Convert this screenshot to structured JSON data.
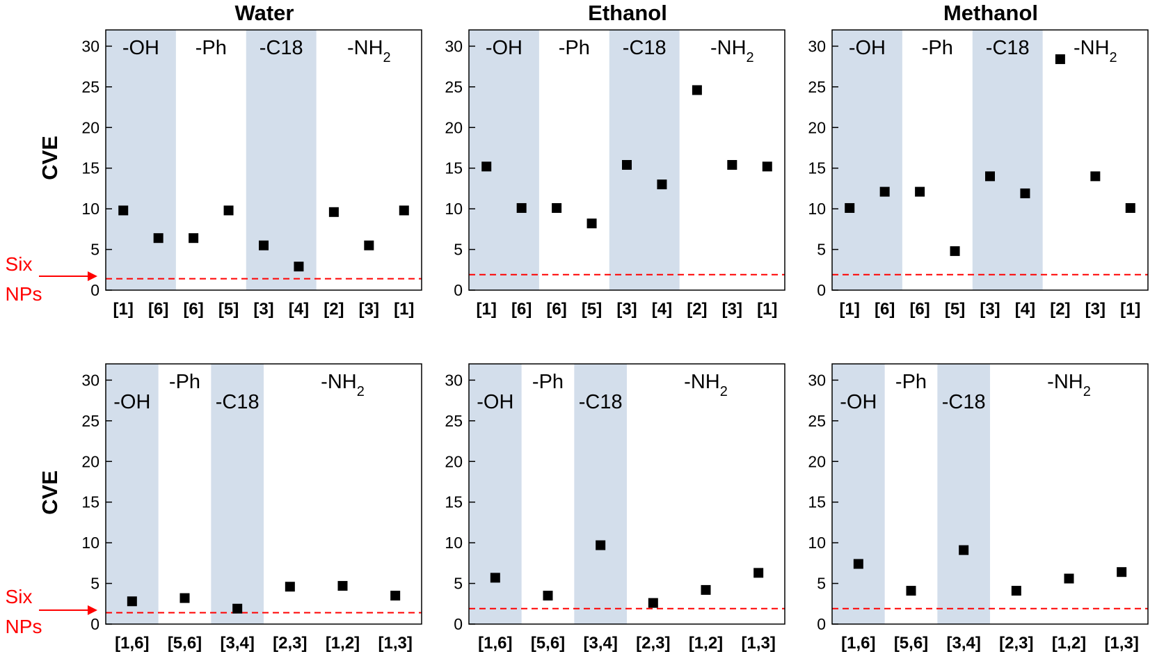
{
  "column_titles": [
    "Water",
    "Ethanol",
    "Methanol"
  ],
  "ylabel": "CVE",
  "reference_label": [
    "Six",
    "NPs"
  ],
  "colors": {
    "shade": "#d3deeb",
    "marker": "#000000",
    "reference_line": "#ff0000",
    "axis": "#000000"
  },
  "chart_data": [
    {
      "type": "scatter",
      "solvent": "Water",
      "row": "top",
      "categories": [
        "[1]",
        "[6]",
        "[6]",
        "[5]",
        "[3]",
        "[4]",
        "[2]",
        "[3]",
        "[1]"
      ],
      "values": [
        9.8,
        6.4,
        6.4,
        9.8,
        5.5,
        2.9,
        9.6,
        5.5,
        9.8
      ],
      "groups": [
        {
          "label": "-OH",
          "range": [
            0,
            1
          ],
          "shaded": true,
          "label_level": "high"
        },
        {
          "label": "-Ph",
          "range": [
            2,
            3
          ],
          "shaded": false,
          "label_level": "high"
        },
        {
          "label": "-C18",
          "range": [
            4,
            5
          ],
          "shaded": true,
          "label_level": "high"
        },
        {
          "label": "-NH",
          "sub": "2",
          "range": [
            6,
            8
          ],
          "shaded": false,
          "label_level": "high"
        }
      ],
      "reference": 1.4,
      "ylim": [
        0,
        32
      ],
      "yticks": [
        0,
        5,
        10,
        15,
        20,
        25,
        30
      ]
    },
    {
      "type": "scatter",
      "solvent": "Ethanol",
      "row": "top",
      "categories": [
        "[1]",
        "[6]",
        "[6]",
        "[5]",
        "[3]",
        "[4]",
        "[2]",
        "[3]",
        "[1]"
      ],
      "values": [
        15.2,
        10.1,
        10.1,
        8.2,
        15.4,
        13.0,
        24.6,
        15.4,
        15.2
      ],
      "groups": [
        {
          "label": "-OH",
          "range": [
            0,
            1
          ],
          "shaded": true,
          "label_level": "high"
        },
        {
          "label": "-Ph",
          "range": [
            2,
            3
          ],
          "shaded": false,
          "label_level": "high"
        },
        {
          "label": "-C18",
          "range": [
            4,
            5
          ],
          "shaded": true,
          "label_level": "high"
        },
        {
          "label": "-NH",
          "sub": "2",
          "range": [
            6,
            8
          ],
          "shaded": false,
          "label_level": "high"
        }
      ],
      "reference": 1.9,
      "ylim": [
        0,
        32
      ],
      "yticks": [
        0,
        5,
        10,
        15,
        20,
        25,
        30
      ]
    },
    {
      "type": "scatter",
      "solvent": "Methanol",
      "row": "top",
      "categories": [
        "[1]",
        "[6]",
        "[6]",
        "[5]",
        "[3]",
        "[4]",
        "[2]",
        "[3]",
        "[1]"
      ],
      "values": [
        10.1,
        12.1,
        12.1,
        4.8,
        14.0,
        11.9,
        28.4,
        14.0,
        10.1
      ],
      "groups": [
        {
          "label": "-OH",
          "range": [
            0,
            1
          ],
          "shaded": true,
          "label_level": "high"
        },
        {
          "label": "-Ph",
          "range": [
            2,
            3
          ],
          "shaded": false,
          "label_level": "high"
        },
        {
          "label": "-C18",
          "range": [
            4,
            5
          ],
          "shaded": true,
          "label_level": "high"
        },
        {
          "label": "-NH",
          "sub": "2",
          "range": [
            6,
            8
          ],
          "shaded": false,
          "label_level": "high"
        }
      ],
      "reference": 1.9,
      "ylim": [
        0,
        32
      ],
      "yticks": [
        0,
        5,
        10,
        15,
        20,
        25,
        30
      ]
    },
    {
      "type": "scatter",
      "solvent": "Water",
      "row": "bottom",
      "categories": [
        "[1,6]",
        "[5,6]",
        "[3,4]",
        "[2,3]",
        "[1,2]",
        "[1,3]"
      ],
      "values": [
        2.8,
        3.2,
        1.9,
        4.6,
        4.7,
        3.5
      ],
      "groups": [
        {
          "label": "-OH",
          "range": [
            0,
            0
          ],
          "shaded": true,
          "label_level": "low"
        },
        {
          "label": "-Ph",
          "range": [
            1,
            1
          ],
          "shaded": false,
          "label_level": "high"
        },
        {
          "label": "-C18",
          "range": [
            2,
            2
          ],
          "shaded": true,
          "label_level": "low"
        },
        {
          "label": "-NH",
          "sub": "2",
          "range": [
            3,
            5
          ],
          "shaded": false,
          "label_level": "high"
        }
      ],
      "reference": 1.4,
      "ylim": [
        0,
        32
      ],
      "yticks": [
        0,
        5,
        10,
        15,
        20,
        25,
        30
      ]
    },
    {
      "type": "scatter",
      "solvent": "Ethanol",
      "row": "bottom",
      "categories": [
        "[1,6]",
        "[5,6]",
        "[3,4]",
        "[2,3]",
        "[1,2]",
        "[1,3]"
      ],
      "values": [
        5.7,
        3.5,
        9.7,
        2.6,
        4.2,
        6.3
      ],
      "groups": [
        {
          "label": "-OH",
          "range": [
            0,
            0
          ],
          "shaded": true,
          "label_level": "low"
        },
        {
          "label": "-Ph",
          "range": [
            1,
            1
          ],
          "shaded": false,
          "label_level": "high"
        },
        {
          "label": "-C18",
          "range": [
            2,
            2
          ],
          "shaded": true,
          "label_level": "low"
        },
        {
          "label": "-NH",
          "sub": "2",
          "range": [
            3,
            5
          ],
          "shaded": false,
          "label_level": "high"
        }
      ],
      "reference": 1.9,
      "ylim": [
        0,
        32
      ],
      "yticks": [
        0,
        5,
        10,
        15,
        20,
        25,
        30
      ]
    },
    {
      "type": "scatter",
      "solvent": "Methanol",
      "row": "bottom",
      "categories": [
        "[1,6]",
        "[5,6]",
        "[3,4]",
        "[2,3]",
        "[1,2]",
        "[1,3]"
      ],
      "values": [
        7.4,
        4.1,
        9.1,
        4.1,
        5.6,
        6.4
      ],
      "groups": [
        {
          "label": "-OH",
          "range": [
            0,
            0
          ],
          "shaded": true,
          "label_level": "low"
        },
        {
          "label": "-Ph",
          "range": [
            1,
            1
          ],
          "shaded": false,
          "label_level": "high"
        },
        {
          "label": "-C18",
          "range": [
            2,
            2
          ],
          "shaded": true,
          "label_level": "low"
        },
        {
          "label": "-NH",
          "sub": "2",
          "range": [
            3,
            5
          ],
          "shaded": false,
          "label_level": "high"
        }
      ],
      "reference": 1.9,
      "ylim": [
        0,
        32
      ],
      "yticks": [
        0,
        5,
        10,
        15,
        20,
        25,
        30
      ]
    }
  ]
}
